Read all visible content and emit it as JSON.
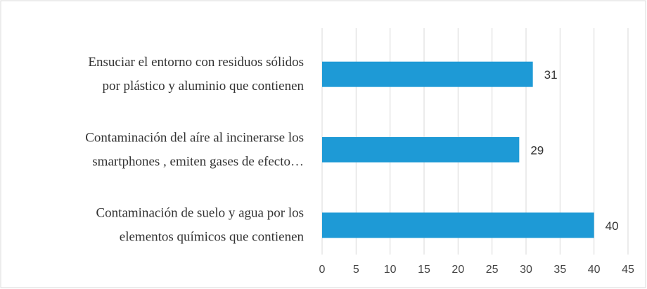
{
  "chart_data": {
    "type": "hbar",
    "categories": [
      [
        "Ensuciar el entorno con residuos sólidos",
        "por  plástico y aluminio que contienen"
      ],
      [
        "Contaminación del aíre al incinerarse los",
        "smartphones , emiten gases de efecto…"
      ],
      [
        "Contaminación de suelo y agua por los",
        "elementos químicos que contienen"
      ]
    ],
    "values": [
      31,
      29,
      40
    ],
    "color": "#1e9ad6",
    "xlim": [
      0,
      45
    ],
    "xticks": [
      0,
      5,
      10,
      15,
      20,
      25,
      30,
      35,
      40,
      45
    ],
    "grid": true
  }
}
